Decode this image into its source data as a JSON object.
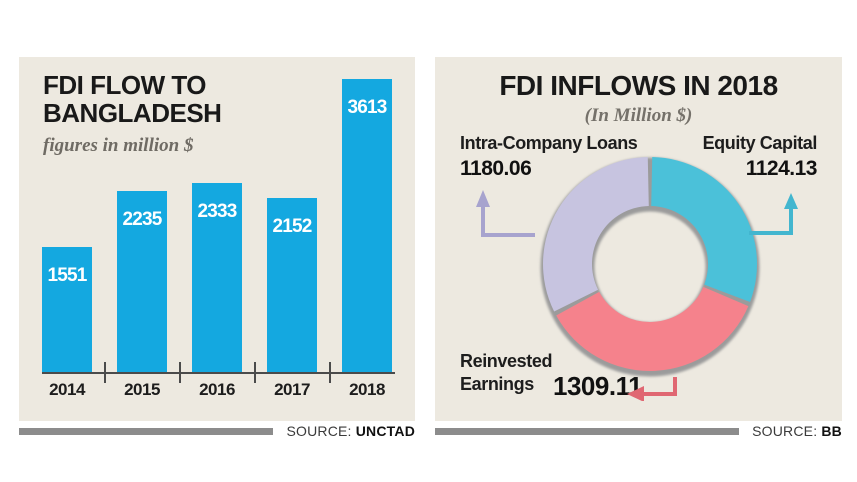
{
  "left_panel": {
    "title_line1": "FDI FLOW TO",
    "title_line2": "BANGLADESH",
    "subtitle": "figures in million $",
    "source_label": "SOURCE:",
    "source_value": "UNCTAD"
  },
  "right_panel": {
    "title": "FDI INFLOWS IN 2018",
    "subtitle": "(In Million $)",
    "source_label": "SOURCE:",
    "source_value": "BB",
    "labels": {
      "intra": {
        "name": "Intra-Company Loans",
        "value": "1180.06"
      },
      "equity": {
        "name": "Equity Capital",
        "value": "1124.13"
      },
      "reinvested": {
        "name_line1": "Reinvested",
        "name_line2": "Earnings",
        "value": "1309.11"
      }
    }
  },
  "colors": {
    "panel_bg": "#EDE9E0",
    "bar": "#14A8E0",
    "donut_equity": "#4BC1D9",
    "donut_reinvested": "#F5828C",
    "donut_intra": "#C7C4E0",
    "donut_shadow": "#9B9B9B",
    "source_bar": "#8C8C8C"
  },
  "chart_data": [
    {
      "type": "bar",
      "title": "FDI FLOW TO BANGLADESH",
      "subtitle": "figures in million $",
      "categories": [
        "2014",
        "2015",
        "2016",
        "2017",
        "2018"
      ],
      "values": [
        1551,
        2235,
        2333,
        2152,
        3613
      ],
      "bar_color": "#14A8E0",
      "value_label_color": "#FFFFFF",
      "ylim": [
        0,
        3613
      ],
      "grid": false,
      "source": "UNCTAD"
    },
    {
      "type": "pie",
      "subtype": "donut",
      "title": "FDI INFLOWS IN 2018",
      "subtitle": "(In Million $)",
      "start_angle_deg": 0,
      "direction": "clockwise",
      "series": [
        {
          "name": "Equity Capital",
          "value": 1124.13,
          "color": "#4BC1D9"
        },
        {
          "name": "Reinvested Earnings",
          "value": 1309.11,
          "color": "#F5828C"
        },
        {
          "name": "Intra-Company Loans",
          "value": 1180.06,
          "color": "#C7C4E0"
        }
      ],
      "source": "BB"
    }
  ]
}
